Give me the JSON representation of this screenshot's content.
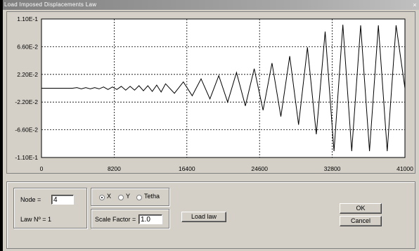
{
  "window": {
    "title": "Load Imposed Displacements Law",
    "close_glyph": "×"
  },
  "chart_data": {
    "type": "line",
    "xlim": [
      0,
      41000
    ],
    "ylim": [
      -0.11,
      0.11
    ],
    "x_ticks": [
      "0",
      "8200",
      "16400",
      "24600",
      "32800",
      "41000"
    ],
    "y_ticks": [
      "1.10E-1",
      "6.60E-2",
      "2.20E-2",
      "-2.20E-2",
      "-6.60E-2",
      "-1.10E-1"
    ],
    "grid": true,
    "series": [
      {
        "color": "#000000",
        "x": [
          0,
          500,
          1000,
          1500,
          2000,
          2500,
          3000,
          3500,
          4000,
          4500,
          5000,
          5500,
          6000,
          6500,
          7000,
          7500,
          8000,
          8500,
          9000,
          9500,
          10000,
          10500,
          11000,
          11500,
          12000,
          12500,
          13000,
          13500,
          14000,
          15000,
          16000,
          17000,
          18000,
          19000,
          20000,
          21000,
          22000,
          23000,
          24000,
          25000,
          26000,
          27000,
          28000,
          29000,
          30000,
          31000,
          32000,
          33000,
          34000,
          35000,
          36000,
          37000,
          38000,
          39000,
          40000,
          41000
        ],
        "y": [
          0,
          0,
          0,
          0,
          0,
          0,
          0,
          0,
          0.001,
          -0.001,
          0.001,
          -0.001,
          0.001,
          -0.001,
          0.002,
          -0.002,
          0.002,
          -0.002,
          0.003,
          -0.003,
          0.003,
          -0.003,
          0.004,
          -0.004,
          0.004,
          -0.005,
          0.005,
          -0.006,
          0.007,
          -0.008,
          0.01,
          -0.012,
          0.015,
          -0.017,
          0.02,
          -0.022,
          0.025,
          -0.028,
          0.031,
          -0.035,
          0.04,
          -0.045,
          0.051,
          -0.058,
          0.065,
          -0.073,
          0.09,
          -0.1,
          0.101,
          -0.1,
          0.1,
          -0.1,
          0.1,
          -0.1,
          0.1,
          0
        ]
      }
    ]
  },
  "controls": {
    "node_label": "Node =",
    "node_value": "4",
    "law_label": "Law Nº = 1",
    "axes": [
      {
        "label": "X",
        "selected": true
      },
      {
        "label": "Y",
        "selected": false
      },
      {
        "label": "Tetha",
        "selected": false
      }
    ],
    "scale_label": "Scale Factor =",
    "scale_value": "1.0",
    "load_law_label": "Load law",
    "ok_label": "OK",
    "cancel_label": "Cancel"
  }
}
